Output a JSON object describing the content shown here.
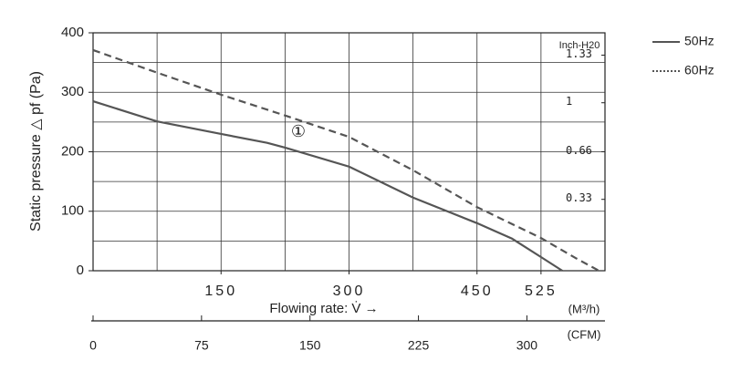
{
  "chart_data": {
    "type": "line",
    "y_label": "Static pressure △ pf (Pa)",
    "x_label": "Flowing rate: V̇ →",
    "x_unit": "(M³/h)",
    "x2_unit": "(CFM)",
    "y2_unit": "Inch-H20",
    "annotation": "①",
    "xlim": [
      0,
      600
    ],
    "xticks": [
      150,
      300,
      450,
      525
    ],
    "x_gridlines": [
      75,
      150,
      225,
      300,
      375,
      450,
      525
    ],
    "ylim": [
      0,
      400
    ],
    "yticks": [
      0,
      100,
      200,
      300,
      400
    ],
    "y_gridlines": [
      50,
      100,
      150,
      200,
      250,
      300,
      350
    ],
    "y2lim": [
      -0.165,
      1.485
    ],
    "y2ticks": [
      0.33,
      0.66,
      1.0,
      1.33
    ],
    "x2lim": [
      0,
      354
    ],
    "x2ticks": [
      0,
      75,
      150,
      225,
      300
    ],
    "grid": true,
    "legend": "top-right",
    "series": [
      {
        "name": "50Hz",
        "color": "#555555",
        "style": "solid",
        "x": [
          0,
          75,
          150,
          204,
          225,
          300,
          375,
          450,
          491,
          525,
          550
        ],
        "values": [
          285,
          251,
          230,
          215,
          207,
          175,
          123,
          80,
          54,
          23,
          0
        ]
      },
      {
        "name": "60Hz",
        "color": "#555555",
        "style": "dashed",
        "x": [
          0,
          75,
          150,
          225,
          300,
          375,
          450,
          525,
          566,
          593
        ],
        "values": [
          371,
          333,
          296,
          261,
          225,
          169,
          107,
          55,
          21,
          0
        ]
      }
    ]
  }
}
